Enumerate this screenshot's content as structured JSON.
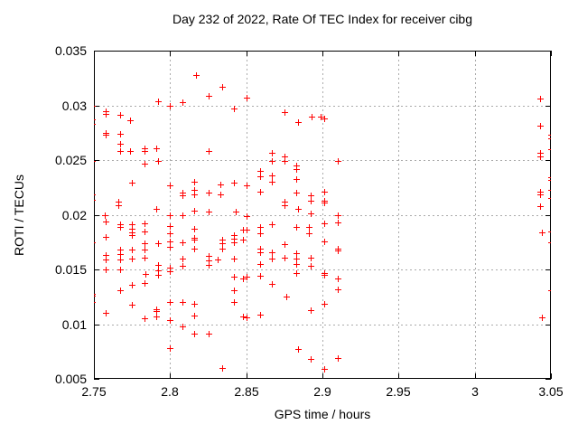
{
  "colors": {
    "marker": "#ff0000",
    "grid": "#aaaaaa",
    "axis": "#000000",
    "background": "#ffffff"
  },
  "chart_data": {
    "type": "scatter",
    "title": "Day 232 of 2022, Rate Of TEC Index for receiver cibg",
    "xlabel": "GPS time / hours",
    "ylabel": "ROTI / TECUs",
    "xlim": [
      2.75,
      3.05
    ],
    "ylim": [
      0.005,
      0.035
    ],
    "grid": true,
    "legend": "none",
    "marker": {
      "shape": "plus",
      "color": "#ff0000",
      "size": 7
    },
    "xticks": [
      [
        2.75,
        "2.75"
      ],
      [
        2.8,
        "2.8"
      ],
      [
        2.85,
        "2.85"
      ],
      [
        2.9,
        "2.9"
      ],
      [
        2.95,
        "2.95"
      ],
      [
        3.0,
        "3"
      ],
      [
        3.05,
        "3.05"
      ]
    ],
    "yticks": [
      [
        0.005,
        "0.005"
      ],
      [
        0.01,
        "0.01"
      ],
      [
        0.015,
        "0.015"
      ],
      [
        0.02,
        "0.02"
      ],
      [
        0.025,
        "0.025"
      ],
      [
        0.03,
        "0.03"
      ],
      [
        0.035,
        "0.035"
      ]
    ],
    "points": [
      [
        2.749,
        0.03
      ],
      [
        2.749,
        0.0287
      ],
      [
        2.749,
        0.0283
      ],
      [
        2.749,
        0.0249
      ],
      [
        2.749,
        0.0219
      ],
      [
        2.749,
        0.0214
      ],
      [
        2.749,
        0.0175
      ],
      [
        2.749,
        0.0128
      ],
      [
        2.749,
        0.0126
      ],
      [
        2.749,
        0.012
      ],
      [
        2.758,
        0.0295
      ],
      [
        2.758,
        0.0292
      ],
      [
        2.758,
        0.0275
      ],
      [
        2.758,
        0.0273
      ],
      [
        2.757,
        0.02
      ],
      [
        2.758,
        0.0194
      ],
      [
        2.758,
        0.018
      ],
      [
        2.758,
        0.0163
      ],
      [
        2.758,
        0.0159
      ],
      [
        2.758,
        0.015
      ],
      [
        2.758,
        0.011
      ],
      [
        2.767,
        0.0291
      ],
      [
        2.767,
        0.0274
      ],
      [
        2.767,
        0.0265
      ],
      [
        2.767,
        0.0258
      ],
      [
        2.766,
        0.0212
      ],
      [
        2.766,
        0.0209
      ],
      [
        2.767,
        0.0191
      ],
      [
        2.767,
        0.0189
      ],
      [
        2.767,
        0.0168
      ],
      [
        2.767,
        0.0164
      ],
      [
        2.767,
        0.0159
      ],
      [
        2.767,
        0.015
      ],
      [
        2.767,
        0.0131
      ],
      [
        2.774,
        0.0286
      ],
      [
        2.774,
        0.0258
      ],
      [
        2.775,
        0.0229
      ],
      [
        2.775,
        0.0191
      ],
      [
        2.775,
        0.0187
      ],
      [
        2.775,
        0.0184
      ],
      [
        2.775,
        0.0181
      ],
      [
        2.775,
        0.0168
      ],
      [
        2.775,
        0.016
      ],
      [
        2.775,
        0.0136
      ],
      [
        2.775,
        0.0118
      ],
      [
        2.783,
        0.0261
      ],
      [
        2.783,
        0.0258
      ],
      [
        2.783,
        0.0247
      ],
      [
        2.783,
        0.0192
      ],
      [
        2.783,
        0.0185
      ],
      [
        2.783,
        0.0174
      ],
      [
        2.783,
        0.0168
      ],
      [
        2.783,
        0.0161
      ],
      [
        2.784,
        0.0146
      ],
      [
        2.783,
        0.0138
      ],
      [
        2.783,
        0.0105
      ],
      [
        2.792,
        0.0304
      ],
      [
        2.791,
        0.0261
      ],
      [
        2.792,
        0.0249
      ],
      [
        2.791,
        0.0205
      ],
      [
        2.792,
        0.0174
      ],
      [
        2.792,
        0.0154
      ],
      [
        2.792,
        0.0149
      ],
      [
        2.792,
        0.0145
      ],
      [
        2.791,
        0.0114
      ],
      [
        2.791,
        0.0112
      ],
      [
        2.791,
        0.0107
      ],
      [
        2.8,
        0.03
      ],
      [
        2.8,
        0.0227
      ],
      [
        2.8,
        0.02
      ],
      [
        2.8,
        0.019
      ],
      [
        2.8,
        0.0183
      ],
      [
        2.8,
        0.0176
      ],
      [
        2.8,
        0.0171
      ],
      [
        2.8,
        0.0152
      ],
      [
        2.8,
        0.0148
      ],
      [
        2.8,
        0.012
      ],
      [
        2.8,
        0.0104
      ],
      [
        2.8,
        0.0078
      ],
      [
        2.808,
        0.0303
      ],
      [
        2.808,
        0.022
      ],
      [
        2.808,
        0.0218
      ],
      [
        2.808,
        0.02
      ],
      [
        2.808,
        0.0175
      ],
      [
        2.808,
        0.016
      ],
      [
        2.808,
        0.0153
      ],
      [
        2.808,
        0.012
      ],
      [
        2.808,
        0.0098
      ],
      [
        2.817,
        0.0328
      ],
      [
        2.816,
        0.023
      ],
      [
        2.816,
        0.0223
      ],
      [
        2.816,
        0.0219
      ],
      [
        2.816,
        0.0204
      ],
      [
        2.816,
        0.0187
      ],
      [
        2.816,
        0.0179
      ],
      [
        2.816,
        0.0177
      ],
      [
        2.816,
        0.0169
      ],
      [
        2.816,
        0.0119
      ],
      [
        2.816,
        0.0108
      ],
      [
        2.816,
        0.0091
      ],
      [
        2.825,
        0.0309
      ],
      [
        2.825,
        0.0258
      ],
      [
        2.825,
        0.022
      ],
      [
        2.825,
        0.0203
      ],
      [
        2.825,
        0.0162
      ],
      [
        2.825,
        0.0158
      ],
      [
        2.825,
        0.0154
      ],
      [
        2.825,
        0.0091
      ],
      [
        2.831,
        0.0159
      ],
      [
        2.834,
        0.0317
      ],
      [
        2.833,
        0.0228
      ],
      [
        2.833,
        0.0219
      ],
      [
        2.834,
        0.0177
      ],
      [
        2.834,
        0.0174
      ],
      [
        2.834,
        0.0169
      ],
      [
        2.834,
        0.006
      ],
      [
        2.842,
        0.0297
      ],
      [
        2.842,
        0.0229
      ],
      [
        2.843,
        0.0203
      ],
      [
        2.842,
        0.0181
      ],
      [
        2.842,
        0.0178
      ],
      [
        2.842,
        0.0175
      ],
      [
        2.842,
        0.016
      ],
      [
        2.842,
        0.0143
      ],
      [
        2.842,
        0.0131
      ],
      [
        2.842,
        0.012
      ],
      [
        2.848,
        0.0186
      ],
      [
        2.848,
        0.0177
      ],
      [
        2.848,
        0.0142
      ],
      [
        2.848,
        0.0107
      ],
      [
        2.85,
        0.0307
      ],
      [
        2.85,
        0.0227
      ],
      [
        2.85,
        0.0199
      ],
      [
        2.85,
        0.0186
      ],
      [
        2.85,
        0.0143
      ],
      [
        2.85,
        0.0106
      ],
      [
        2.859,
        0.024
      ],
      [
        2.859,
        0.0235
      ],
      [
        2.859,
        0.0221
      ],
      [
        2.859,
        0.0189
      ],
      [
        2.859,
        0.0183
      ],
      [
        2.859,
        0.0169
      ],
      [
        2.859,
        0.0166
      ],
      [
        2.859,
        0.0155
      ],
      [
        2.859,
        0.0144
      ],
      [
        2.859,
        0.0109
      ],
      [
        2.867,
        0.0257
      ],
      [
        2.867,
        0.0249
      ],
      [
        2.867,
        0.0236
      ],
      [
        2.867,
        0.023
      ],
      [
        2.867,
        0.0191
      ],
      [
        2.867,
        0.0166
      ],
      [
        2.867,
        0.016
      ],
      [
        2.867,
        0.0137
      ],
      [
        2.875,
        0.0294
      ],
      [
        2.875,
        0.0253
      ],
      [
        2.875,
        0.0249
      ],
      [
        2.875,
        0.0212
      ],
      [
        2.875,
        0.0209
      ],
      [
        2.875,
        0.0173
      ],
      [
        2.875,
        0.0161
      ],
      [
        2.876,
        0.0125
      ],
      [
        2.884,
        0.0285
      ],
      [
        2.883,
        0.0245
      ],
      [
        2.883,
        0.0242
      ],
      [
        2.883,
        0.0233
      ],
      [
        2.883,
        0.022
      ],
      [
        2.884,
        0.0205
      ],
      [
        2.883,
        0.0189
      ],
      [
        2.883,
        0.0165
      ],
      [
        2.883,
        0.016
      ],
      [
        2.883,
        0.0155
      ],
      [
        2.883,
        0.0147
      ],
      [
        2.884,
        0.0077
      ],
      [
        2.893,
        0.029
      ],
      [
        2.892,
        0.0218
      ],
      [
        2.892,
        0.0213
      ],
      [
        2.892,
        0.0201
      ],
      [
        2.891,
        0.0189
      ],
      [
        2.891,
        0.0183
      ],
      [
        2.892,
        0.0161
      ],
      [
        2.892,
        0.0153
      ],
      [
        2.892,
        0.0113
      ],
      [
        2.892,
        0.0068
      ],
      [
        2.899,
        0.029
      ],
      [
        2.901,
        0.0288
      ],
      [
        2.901,
        0.0221
      ],
      [
        2.901,
        0.0213
      ],
      [
        2.901,
        0.0211
      ],
      [
        2.901,
        0.0192
      ],
      [
        2.901,
        0.0176
      ],
      [
        2.901,
        0.0147
      ],
      [
        2.901,
        0.0145
      ],
      [
        2.901,
        0.0119
      ],
      [
        2.901,
        0.0059
      ],
      [
        2.91,
        0.0249
      ],
      [
        2.91,
        0.02
      ],
      [
        2.91,
        0.0193
      ],
      [
        2.91,
        0.0169
      ],
      [
        2.91,
        0.0167
      ],
      [
        2.91,
        0.0142
      ],
      [
        2.91,
        0.0132
      ],
      [
        2.91,
        0.0069
      ],
      [
        3.043,
        0.0306
      ],
      [
        3.043,
        0.0281
      ],
      [
        3.043,
        0.0257
      ],
      [
        3.043,
        0.0253
      ],
      [
        3.043,
        0.0221
      ],
      [
        3.043,
        0.0219
      ],
      [
        3.043,
        0.0208
      ],
      [
        3.044,
        0.0184
      ],
      [
        3.044,
        0.0106
      ],
      [
        3.05,
        0.0273
      ],
      [
        3.05,
        0.027
      ],
      [
        3.05,
        0.026
      ],
      [
        3.05,
        0.0234
      ],
      [
        3.05,
        0.0232
      ],
      [
        3.05,
        0.0223
      ],
      [
        3.05,
        0.0215
      ],
      [
        3.05,
        0.0185
      ],
      [
        3.05,
        0.0175
      ],
      [
        3.05,
        0.0131
      ]
    ]
  }
}
